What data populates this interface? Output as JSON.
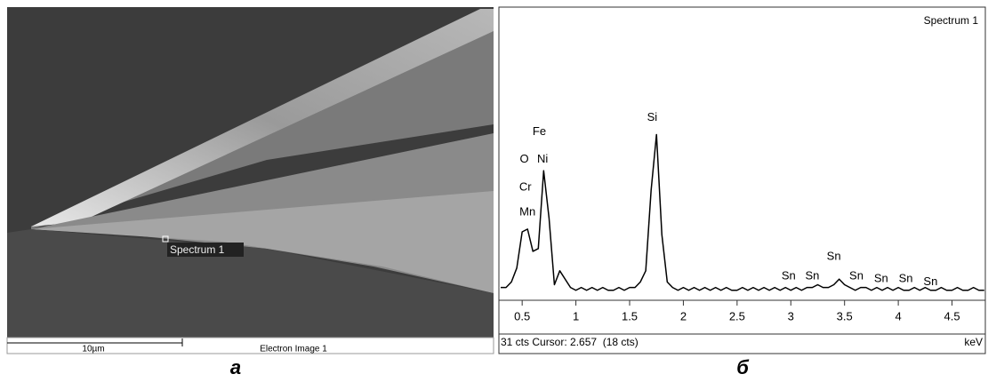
{
  "panel_a": {
    "marker_label": "Spectrum 1",
    "scale_label": "10µm",
    "image_label": "Electron Image 1",
    "caption": "а"
  },
  "chart_data": {
    "type": "line",
    "title": "Spectrum 1",
    "caption": "б",
    "status": "31 cts Cursor: 2.657  (18 cts)",
    "x_label": "keV",
    "x": [
      0.3,
      0.35,
      0.4,
      0.45,
      0.5,
      0.55,
      0.6,
      0.65,
      0.7,
      0.75,
      0.8,
      0.85,
      0.9,
      0.95,
      1.0,
      1.05,
      1.1,
      1.15,
      1.2,
      1.25,
      1.3,
      1.35,
      1.4,
      1.45,
      1.5,
      1.55,
      1.6,
      1.65,
      1.7,
      1.75,
      1.8,
      1.85,
      1.9,
      1.95,
      2.0,
      2.05,
      2.1,
      2.15,
      2.2,
      2.25,
      2.3,
      2.35,
      2.4,
      2.45,
      2.5,
      2.55,
      2.6,
      2.65,
      2.7,
      2.75,
      2.8,
      2.85,
      2.9,
      2.95,
      3.0,
      3.05,
      3.1,
      3.15,
      3.2,
      3.25,
      3.3,
      3.35,
      3.4,
      3.45,
      3.5,
      3.55,
      3.6,
      3.65,
      3.7,
      3.75,
      3.8,
      3.85,
      3.9,
      3.95,
      4.0,
      4.05,
      4.1,
      4.15,
      4.2,
      4.25,
      4.3,
      4.35,
      4.4,
      4.45,
      4.5,
      4.55,
      4.6,
      4.65,
      4.7,
      4.75,
      4.8
    ],
    "series": [
      {
        "color": "#000000",
        "values": [
          3,
          3,
          5,
          10,
          23,
          24,
          16,
          17,
          45,
          28,
          4,
          9,
          6,
          3,
          2,
          3,
          2,
          3,
          2,
          3,
          2,
          2,
          3,
          2,
          3,
          3,
          5,
          9,
          38,
          58,
          22,
          5,
          3,
          2,
          3,
          2,
          3,
          2,
          3,
          2,
          3,
          2,
          3,
          2,
          2,
          3,
          2,
          3,
          2,
          3,
          2,
          3,
          2,
          3,
          2,
          3,
          2,
          3,
          3,
          4,
          3,
          3,
          4,
          6,
          4,
          3,
          2,
          3,
          3,
          2,
          3,
          2,
          3,
          2,
          3,
          2,
          2,
          3,
          2,
          3,
          2,
          2,
          3,
          2,
          2,
          3,
          2,
          2,
          3,
          2,
          2
        ]
      }
    ],
    "xlim": [
      0.3,
      4.81
    ],
    "ylim": [
      0,
      100
    ],
    "xticks": [
      0.5,
      1,
      1.5,
      2,
      2.5,
      3,
      3.5,
      4,
      4.5
    ],
    "annotations": [
      {
        "text": "O",
        "x": 0.52,
        "y": 49
      },
      {
        "text": "Cr",
        "x": 0.53,
        "y": 39
      },
      {
        "text": "Mn",
        "x": 0.55,
        "y": 30
      },
      {
        "text": "Fe",
        "x": 0.66,
        "y": 59
      },
      {
        "text": "Ni",
        "x": 0.69,
        "y": 49
      },
      {
        "text": "Si",
        "x": 1.71,
        "y": 64
      },
      {
        "text": "Sn",
        "x": 2.98,
        "y": 7
      },
      {
        "text": "Sn",
        "x": 3.2,
        "y": 7
      },
      {
        "text": "Sn",
        "x": 3.4,
        "y": 14
      },
      {
        "text": "Sn",
        "x": 3.61,
        "y": 7
      },
      {
        "text": "Sn",
        "x": 3.84,
        "y": 6
      },
      {
        "text": "Sn",
        "x": 4.07,
        "y": 6
      },
      {
        "text": "Sn",
        "x": 4.3,
        "y": 5
      }
    ]
  }
}
